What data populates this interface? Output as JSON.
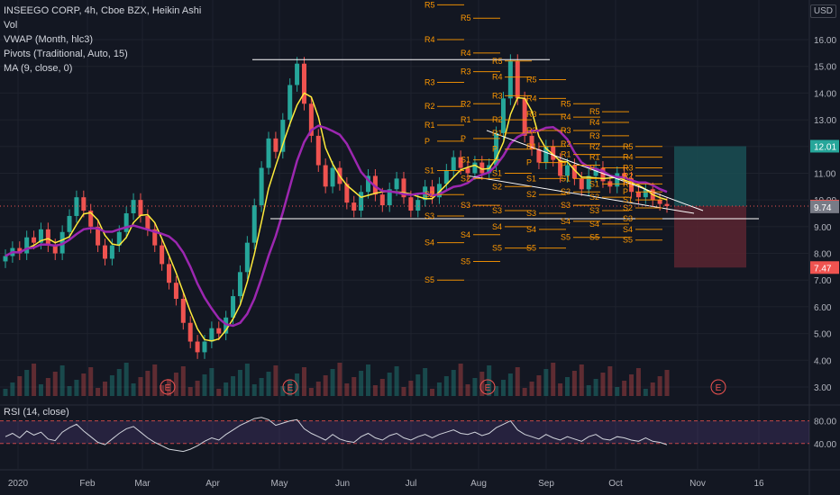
{
  "header": {
    "title": "INSEEGO CORP, 4h, Cboe BZX, Heikin Ashi",
    "indicators": [
      "Vol",
      "VWAP (Month, hlc3)",
      "Pivots (Traditional, Auto, 15)",
      "MA (9, close, 0)"
    ],
    "currency": "USD"
  },
  "rsi": {
    "label": "RSI (14, close)",
    "levels": [
      80,
      40
    ]
  },
  "colors": {
    "background": "#131722",
    "up": "#26a69a",
    "down": "#ef5350",
    "vwap": "#9c27b0",
    "ma": "#ffeb3b",
    "pivot": "#ff9800",
    "rsi": "#d1d4dc",
    "target_zone": "#1a4f54",
    "stop_zone": "#5b2530"
  },
  "chart_data": {
    "type": "candlestick",
    "price_ticks": [
      "16.00",
      "15.00",
      "14.00",
      "13.00",
      "12.00",
      "11.00",
      "10.00",
      "9.00",
      "8.00",
      "7.00",
      "6.00",
      "5.00",
      "4.00",
      "3.00"
    ],
    "time_ticks": [
      "2020",
      "Feb",
      "Mar",
      "Apr",
      "May",
      "Jun",
      "Jul",
      "Aug",
      "Sep",
      "Oct",
      "Nov",
      "16"
    ],
    "earnings_markers": [
      "E",
      "E",
      "E",
      "E"
    ],
    "price_labels": [
      {
        "value": "12.01",
        "color": "#26a69a"
      },
      {
        "value": "9.77",
        "color": "#ef5350"
      },
      {
        "value": "9.74",
        "color": "#787b86"
      },
      {
        "value": "7.47",
        "color": "#ef5350"
      }
    ],
    "pivot_labels": [
      "R5",
      "R4",
      "R3",
      "R2",
      "R1",
      "P",
      "S1",
      "S2",
      "S3",
      "S4",
      "S5"
    ],
    "candles": [
      [
        7.7,
        7.9
      ],
      [
        7.9,
        8.2
      ],
      [
        8.2,
        8.0
      ],
      [
        8.0,
        8.6
      ],
      [
        8.6,
        8.4
      ],
      [
        8.4,
        8.9
      ],
      [
        8.9,
        8.3
      ],
      [
        8.3,
        8.0
      ],
      [
        8.0,
        8.8
      ],
      [
        8.8,
        9.4
      ],
      [
        9.4,
        10.1
      ],
      [
        10.1,
        9.6
      ],
      [
        9.6,
        9.0
      ],
      [
        9.0,
        8.3
      ],
      [
        8.3,
        7.8
      ],
      [
        7.8,
        8.3
      ],
      [
        8.3,
        8.8
      ],
      [
        8.8,
        9.5
      ],
      [
        9.5,
        10.0
      ],
      [
        10.0,
        9.4
      ],
      [
        9.4,
        8.9
      ],
      [
        8.9,
        8.3
      ],
      [
        8.3,
        7.6
      ],
      [
        7.6,
        6.9
      ],
      [
        6.9,
        6.3
      ],
      [
        6.3,
        5.4
      ],
      [
        5.4,
        4.7
      ],
      [
        4.7,
        4.3
      ],
      [
        4.3,
        4.7
      ],
      [
        4.7,
        5.2
      ],
      [
        5.2,
        5.0
      ],
      [
        5.0,
        5.6
      ],
      [
        5.6,
        6.4
      ],
      [
        6.4,
        7.3
      ],
      [
        7.3,
        8.4
      ],
      [
        8.4,
        9.8
      ],
      [
        9.8,
        11.2
      ],
      [
        11.2,
        12.3
      ],
      [
        12.3,
        11.8
      ],
      [
        11.8,
        13.0
      ],
      [
        13.0,
        14.3
      ],
      [
        14.3,
        15.1
      ],
      [
        15.1,
        13.6
      ],
      [
        13.6,
        12.4
      ],
      [
        12.4,
        11.3
      ],
      [
        11.3,
        10.5
      ],
      [
        10.5,
        11.2
      ],
      [
        11.2,
        10.6
      ],
      [
        10.6,
        9.9
      ],
      [
        9.9,
        9.6
      ],
      [
        9.6,
        10.3
      ],
      [
        10.3,
        10.9
      ],
      [
        10.9,
        10.2
      ],
      [
        10.2,
        9.8
      ],
      [
        9.8,
        10.4
      ],
      [
        10.4,
        10.8
      ],
      [
        10.8,
        10.1
      ],
      [
        10.1,
        9.6
      ],
      [
        9.6,
        10.0
      ],
      [
        10.0,
        10.5
      ],
      [
        10.5,
        10.1
      ],
      [
        10.1,
        10.6
      ],
      [
        10.6,
        11.1
      ],
      [
        11.1,
        11.6
      ],
      [
        11.6,
        11.2
      ],
      [
        11.2,
        11.0
      ],
      [
        11.0,
        11.4
      ],
      [
        11.4,
        11.0
      ],
      [
        11.0,
        11.3
      ],
      [
        11.3,
        12.5
      ],
      [
        12.5,
        13.8
      ],
      [
        13.8,
        15.2
      ],
      [
        15.2,
        13.8
      ],
      [
        13.8,
        12.4
      ],
      [
        12.4,
        11.9
      ],
      [
        11.9,
        11.4
      ],
      [
        11.4,
        12.0
      ],
      [
        12.0,
        11.5
      ],
      [
        11.5,
        10.9
      ],
      [
        10.9,
        11.3
      ],
      [
        11.3,
        10.8
      ],
      [
        10.8,
        10.4
      ],
      [
        10.4,
        10.9
      ],
      [
        10.9,
        11.2
      ],
      [
        11.2,
        10.7
      ],
      [
        10.7,
        10.5
      ],
      [
        10.5,
        11.0
      ],
      [
        11.0,
        10.8
      ],
      [
        10.8,
        10.3
      ],
      [
        10.3,
        10.1
      ],
      [
        10.1,
        10.4
      ],
      [
        10.4,
        10.0
      ],
      [
        10.0,
        9.85
      ],
      [
        9.85,
        9.77
      ]
    ],
    "rsi_values": [
      52,
      58,
      50,
      62,
      55,
      60,
      48,
      45,
      60,
      68,
      74,
      62,
      52,
      42,
      38,
      48,
      58,
      66,
      70,
      60,
      50,
      42,
      36,
      30,
      28,
      26,
      30,
      36,
      44,
      50,
      46,
      56,
      64,
      72,
      78,
      84,
      86,
      82,
      72,
      76,
      80,
      82,
      66,
      58,
      52,
      46,
      56,
      48,
      44,
      42,
      52,
      58,
      50,
      46,
      54,
      58,
      50,
      46,
      52,
      56,
      50,
      56,
      60,
      64,
      58,
      56,
      60,
      54,
      58,
      68,
      74,
      80,
      64,
      56,
      52,
      48,
      56,
      50,
      46,
      52,
      48,
      44,
      52,
      56,
      48,
      46,
      52,
      50,
      46,
      44,
      50,
      44,
      42,
      38
    ]
  }
}
